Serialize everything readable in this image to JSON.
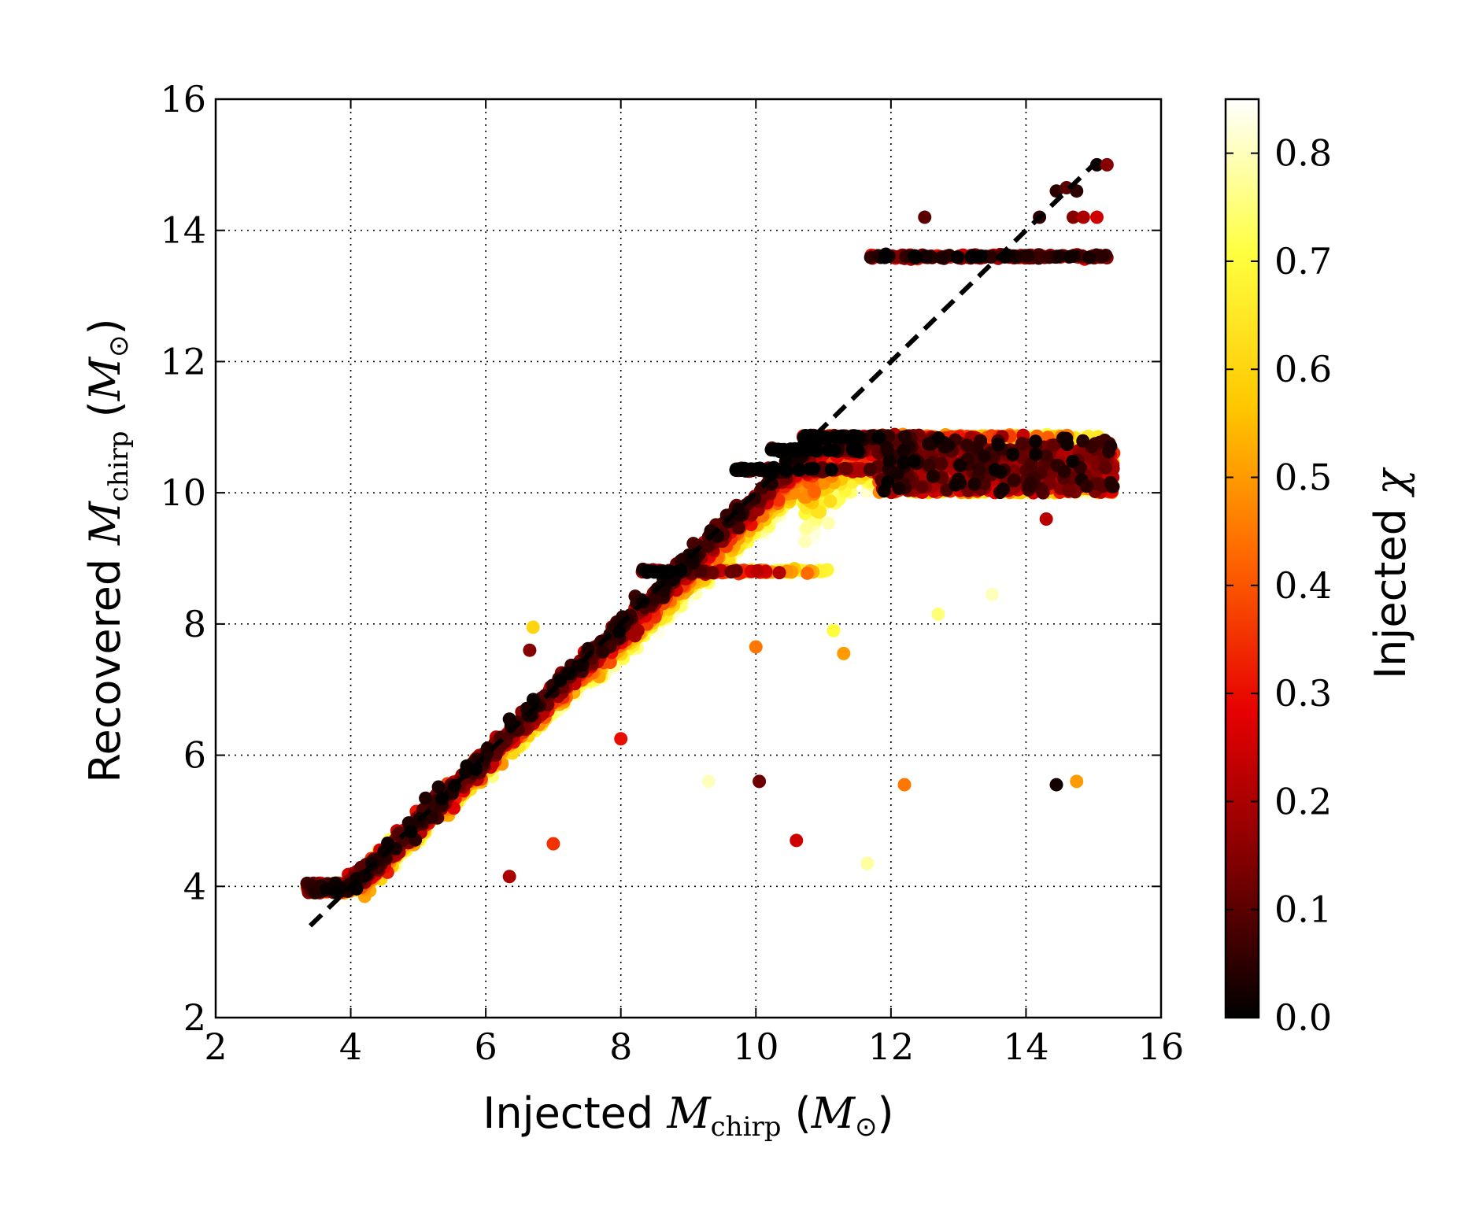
{
  "chart_data": {
    "type": "scatter",
    "title": "",
    "xlabel": {
      "prefix": "Injected ",
      "var": "M",
      "sub": "chirp",
      "unit_open": " (",
      "unit_var": "M",
      "unit_sub": "⊙",
      "unit_close": ")"
    },
    "ylabel": {
      "prefix": "Recovered ",
      "var": "M",
      "sub": "chirp",
      "unit_open": " (",
      "unit_var": "M",
      "unit_sub": "⊙",
      "unit_close": ")"
    },
    "xlim": [
      2,
      16
    ],
    "ylim": [
      2,
      16
    ],
    "x_ticks": [
      2,
      4,
      6,
      8,
      10,
      12,
      14,
      16
    ],
    "y_ticks": [
      2,
      4,
      6,
      8,
      10,
      12,
      14,
      16
    ],
    "grid": true,
    "colorbar": {
      "label_prefix": "Injected ",
      "label_symbol": "χ",
      "range": [
        0.0,
        0.85
      ],
      "ticks": [
        "0.0",
        "0.1",
        "0.2",
        "0.3",
        "0.4",
        "0.5",
        "0.6",
        "0.7",
        "0.8"
      ],
      "colormap": "hot",
      "colors": [
        "#000000",
        "#800000",
        "#e60000",
        "#ff6600",
        "#ffc800",
        "#ffff40",
        "#ffffff"
      ]
    },
    "reference_line": {
      "style": "dashed",
      "x": [
        3.4,
        15.1
      ],
      "y": [
        3.4,
        15.1
      ]
    },
    "band_regions": [
      {
        "desc": "low plateau",
        "x_range": [
          3.35,
          4.1
        ],
        "y": 3.95
      },
      {
        "desc": "recovered at 10.85",
        "x_range": [
          10.7,
          15.2
        ],
        "y": 10.85
      },
      {
        "desc": "recovered at 10.65",
        "x_range": [
          10.2,
          15.3
        ],
        "y": 10.65
      },
      {
        "desc": "recovered at 10.35",
        "x_range": [
          9.7,
          14.2
        ],
        "y": 10.35
      },
      {
        "desc": "recovered at 8.8",
        "x_range": [
          8.3,
          11.2
        ],
        "y": 8.8
      },
      {
        "desc": "recovered at 13.6",
        "x_range": [
          11.7,
          15.2
        ],
        "y": 13.6
      }
    ],
    "outlier_points": [
      {
        "x": 6.7,
        "y": 7.95,
        "chi": 0.6
      },
      {
        "x": 6.65,
        "y": 7.6,
        "chi": 0.15
      },
      {
        "x": 6.35,
        "y": 6.55,
        "chi": 0.02
      },
      {
        "x": 7.0,
        "y": 4.65,
        "chi": 0.35
      },
      {
        "x": 6.35,
        "y": 4.15,
        "chi": 0.2
      },
      {
        "x": 8.0,
        "y": 6.25,
        "chi": 0.3
      },
      {
        "x": 9.3,
        "y": 5.6,
        "chi": 0.8
      },
      {
        "x": 10.05,
        "y": 5.6,
        "chi": 0.12
      },
      {
        "x": 10.6,
        "y": 4.7,
        "chi": 0.25
      },
      {
        "x": 11.65,
        "y": 4.35,
        "chi": 0.78
      },
      {
        "x": 12.2,
        "y": 5.55,
        "chi": 0.45
      },
      {
        "x": 14.45,
        "y": 5.55,
        "chi": 0.02
      },
      {
        "x": 14.75,
        "y": 5.6,
        "chi": 0.5
      },
      {
        "x": 14.3,
        "y": 9.6,
        "chi": 0.22
      },
      {
        "x": 14.9,
        "y": 10.1,
        "chi": 0.05
      },
      {
        "x": 11.3,
        "y": 7.55,
        "chi": 0.5
      },
      {
        "x": 11.15,
        "y": 7.9,
        "chi": 0.7
      },
      {
        "x": 12.7,
        "y": 8.15,
        "chi": 0.75
      },
      {
        "x": 13.5,
        "y": 8.45,
        "chi": 0.8
      },
      {
        "x": 10.0,
        "y": 7.65,
        "chi": 0.45
      },
      {
        "x": 12.5,
        "y": 14.2,
        "chi": 0.1
      },
      {
        "x": 14.2,
        "y": 14.2,
        "chi": 0.05
      },
      {
        "x": 14.7,
        "y": 14.2,
        "chi": 0.15
      },
      {
        "x": 14.85,
        "y": 14.2,
        "chi": 0.2
      },
      {
        "x": 15.05,
        "y": 14.2,
        "chi": 0.25
      },
      {
        "x": 14.45,
        "y": 14.6,
        "chi": 0.05
      },
      {
        "x": 14.6,
        "y": 14.65,
        "chi": 0.1
      },
      {
        "x": 14.75,
        "y": 14.6,
        "chi": 0.05
      },
      {
        "x": 15.05,
        "y": 15.0,
        "chi": 0.02
      },
      {
        "x": 15.2,
        "y": 15.0,
        "chi": 0.15
      }
    ]
  }
}
